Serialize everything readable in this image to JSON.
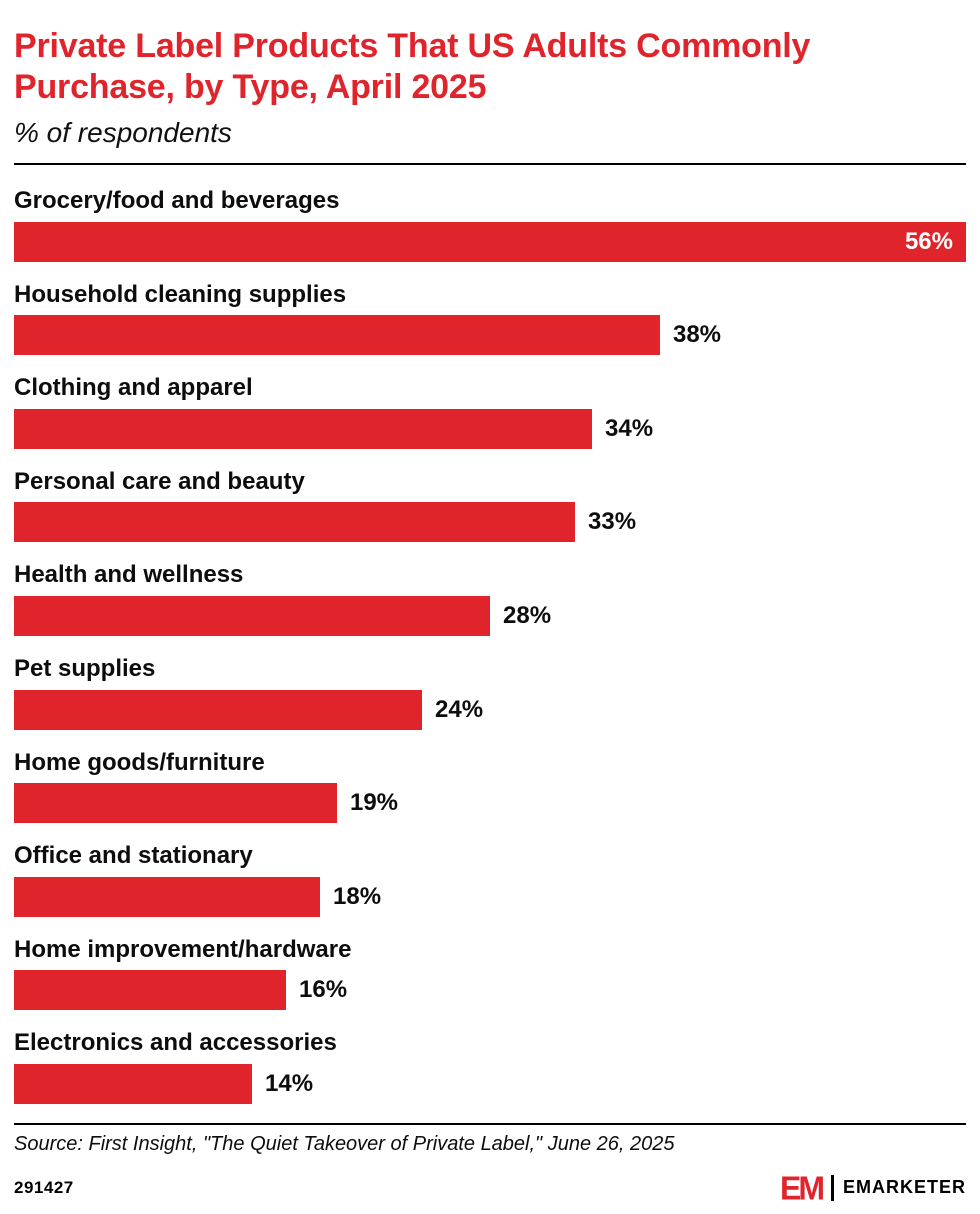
{
  "header": {
    "title": "Private Label Products That US Adults Commonly Purchase, by Type, April 2025",
    "subtitle": "% of respondents"
  },
  "chart_data": {
    "type": "bar",
    "orientation": "horizontal",
    "unit": "%",
    "title": "Private Label Products That US Adults Commonly Purchase, by Type, April 2025",
    "subtitle": "% of respondents",
    "categories": [
      "Grocery/food and beverages",
      "Household cleaning supplies",
      "Clothing and apparel",
      "Personal care and beauty",
      "Health and wellness",
      "Pet supplies",
      "Home goods/furniture",
      "Office and stationary",
      "Home improvement/hardware",
      "Electronics and accessories"
    ],
    "values": [
      56,
      38,
      34,
      33,
      28,
      24,
      19,
      18,
      16,
      14
    ],
    "value_labels": [
      "56%",
      "38%",
      "34%",
      "33%",
      "28%",
      "24%",
      "19%",
      "18%",
      "16%",
      "14%"
    ],
    "xlim": [
      0,
      56
    ],
    "bar_color": "#e0242c",
    "grid": false,
    "legend": false
  },
  "source": "Source: First Insight, \"The Quiet Takeover of Private Label,\" June 26, 2025",
  "footer": {
    "chart_id": "291427",
    "brand": {
      "mark": "EM",
      "name": "EMARKETER"
    }
  }
}
